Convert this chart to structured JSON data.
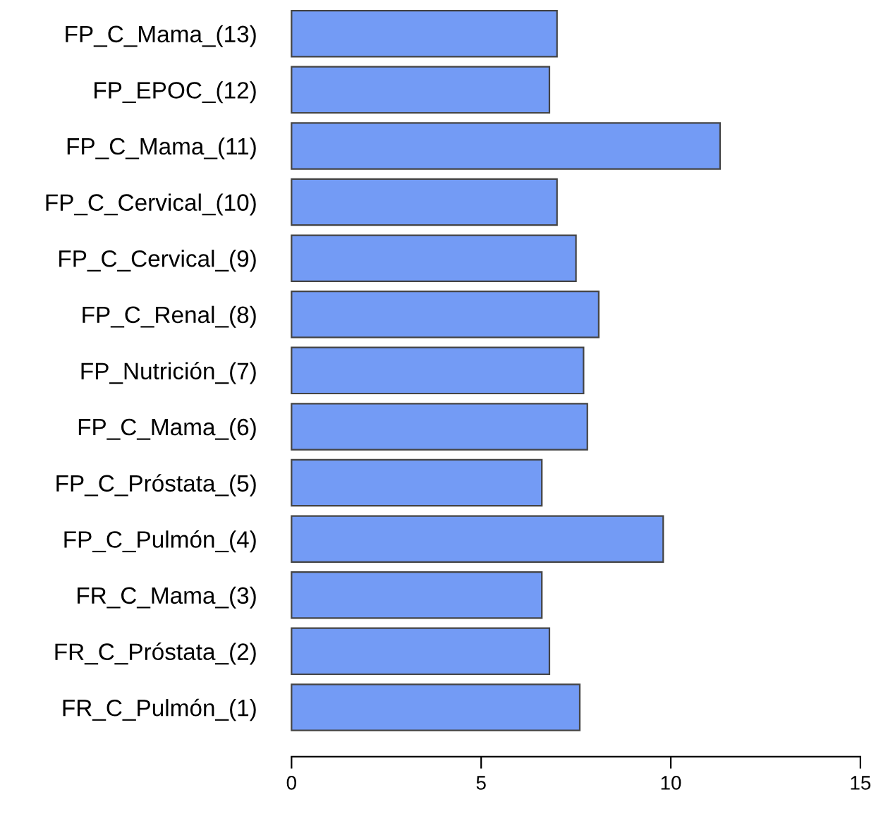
{
  "chart_data": {
    "type": "bar",
    "orientation": "horizontal",
    "categories": [
      "FP_C_Mama_(13)",
      "FP_EPOC_(12)",
      "FP_C_Mama_(11)",
      "FP_C_Cervical_(10)",
      "FP_C_Cervical_(9)",
      "FP_C_Renal_(8)",
      "FP_Nutrición_(7)",
      "FP_C_Mama_(6)",
      "FP_C_Próstata_(5)",
      "FP_C_Pulmón_(4)",
      "FR_C_Mama_(3)",
      "FR_C_Próstata_(2)",
      "FR_C_Pulmón_(1)"
    ],
    "values": [
      7.0,
      6.8,
      11.3,
      7.0,
      7.5,
      8.1,
      7.7,
      7.8,
      6.6,
      9.8,
      6.6,
      6.8,
      7.6
    ],
    "color": "#739bf5",
    "xlim": [
      0,
      15
    ],
    "xticks": [
      0,
      5,
      10,
      15
    ],
    "grid": false,
    "legend": false
  }
}
